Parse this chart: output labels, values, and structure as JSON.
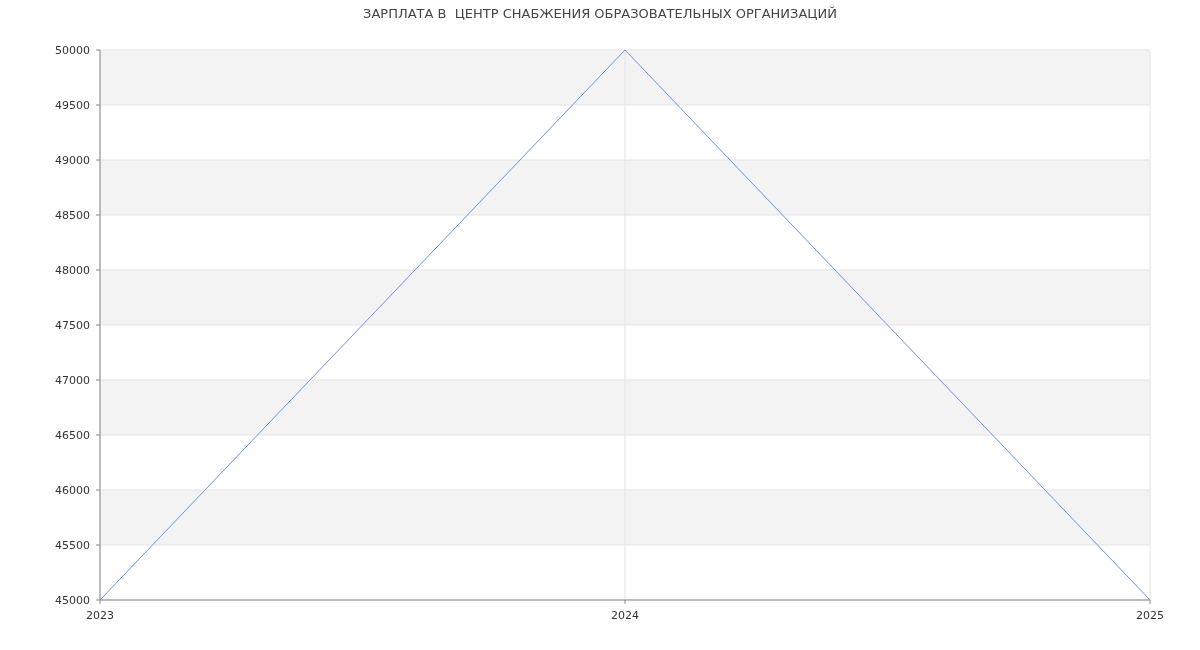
{
  "chart_data": {
    "type": "line",
    "title": "ЗАРПЛАТА В  ЦЕНТР СНАБЖЕНИЯ ОБРАЗОВАТЕЛЬНЫХ ОРГАНИЗАЦИЙ",
    "x": [
      2023,
      2024,
      2025
    ],
    "series": [
      {
        "color": "#6495ed",
        "values": [
          45000,
          50000,
          45000
        ]
      }
    ],
    "xlim": [
      2023,
      2025
    ],
    "xticks": [
      2023,
      2024,
      2025
    ],
    "ylim": [
      45000,
      50000
    ],
    "yticks": [
      45000,
      45500,
      46000,
      46500,
      47000,
      47500,
      48000,
      48500,
      49000,
      49500,
      50000
    ],
    "grid": true,
    "marker": "none",
    "line_style": "solid"
  }
}
